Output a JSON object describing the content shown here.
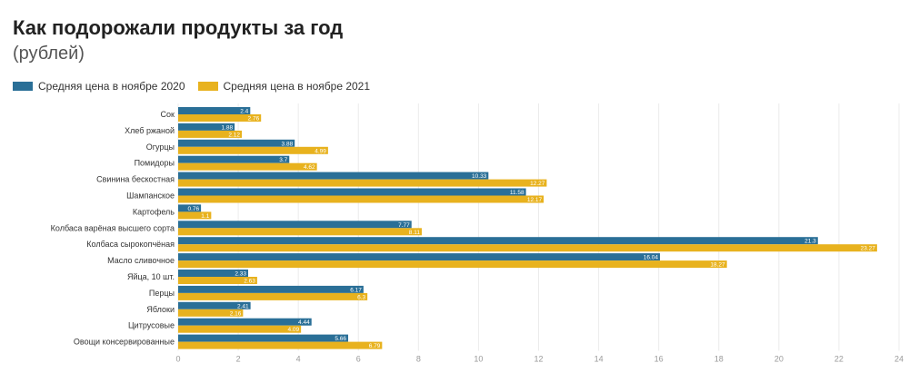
{
  "chart_data": {
    "type": "bar",
    "orientation": "horizontal",
    "title": "Как подорожали продукты за год",
    "subtitle": "(рублей)",
    "categories": [
      "Сок",
      "Хлеб ржаной",
      "Огурцы",
      "Помидоры",
      "Свинина бескостная",
      "Шампанское",
      "Картофель",
      "Колбаса варёная высшего сорта",
      "Колбаса сырокопчёная",
      "Масло сливочное",
      "Яйца, 10 шт.",
      "Перцы",
      "Яблоки",
      "Цитрусовые",
      "Овощи консервированные"
    ],
    "series": [
      {
        "name": "Средняя цена в ноябре 2020",
        "color": "#2a6f97",
        "values": [
          2.4,
          1.88,
          3.88,
          3.7,
          10.33,
          11.58,
          0.76,
          7.77,
          21.3,
          16.04,
          2.33,
          6.17,
          2.41,
          4.44,
          5.66
        ]
      },
      {
        "name": "Средняя цена в ноябре 2021",
        "color": "#e8b21e",
        "values": [
          2.76,
          2.12,
          4.99,
          4.62,
          12.27,
          12.17,
          1.1,
          8.11,
          23.27,
          18.27,
          2.63,
          6.3,
          2.16,
          4.09,
          6.79
        ]
      }
    ],
    "xlim": [
      0,
      24
    ],
    "xticks": [
      0,
      2,
      4,
      6,
      8,
      10,
      12,
      14,
      16,
      18,
      20,
      22,
      24
    ],
    "grid": true,
    "legend": "top-left"
  }
}
